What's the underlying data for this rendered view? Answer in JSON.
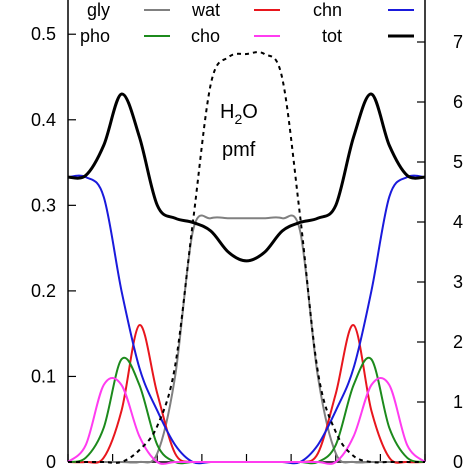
{
  "chart_data": {
    "type": "line",
    "title": "",
    "xlabel": "",
    "ylabel": "",
    "ylabel_right": "",
    "x_domain": [
      0,
      1
    ],
    "ylim": [
      0,
      0.54
    ],
    "y2lim": [
      0,
      7.7
    ],
    "yticks": [
      "0",
      "0.1",
      "0.2",
      "0.3",
      "0.4",
      "0.5"
    ],
    "y2ticks": [
      "0",
      "1",
      "2",
      "3",
      "4",
      "5",
      "6",
      "7"
    ],
    "grid": false,
    "legend_position": "top",
    "annotation": {
      "main": "H",
      "subscript": "2",
      "tail": "O",
      "line2": "pmf"
    },
    "x": [
      0.0,
      0.05,
      0.1,
      0.15,
      0.2,
      0.25,
      0.3,
      0.35,
      0.4,
      0.45,
      0.5,
      0.55,
      0.6,
      0.65,
      0.7,
      0.75,
      0.8,
      0.85,
      0.9,
      0.95,
      1.0
    ],
    "series": [
      {
        "name": "gly",
        "color": "#808080",
        "axis": "left",
        "values": [
          0.0,
          0.0,
          0.0,
          0.0,
          0.0,
          0.01,
          0.1,
          0.27,
          0.285,
          0.285,
          0.285,
          0.285,
          0.285,
          0.27,
          0.1,
          0.01,
          0.0,
          0.0,
          0.0,
          0.0,
          0.0
        ]
      },
      {
        "name": "wat",
        "color": "#e8161d",
        "axis": "left",
        "values": [
          0.0,
          0.0,
          0.005,
          0.06,
          0.16,
          0.08,
          0.01,
          0.0,
          0.0,
          0.0,
          0.0,
          0.0,
          0.0,
          0.0,
          0.01,
          0.08,
          0.16,
          0.06,
          0.005,
          0.0,
          0.0
        ]
      },
      {
        "name": "chn",
        "color": "#1a1adc",
        "axis": "left",
        "values": [
          0.333,
          0.333,
          0.31,
          0.2,
          0.11,
          0.06,
          0.02,
          0.0,
          0.0,
          0.0,
          0.0,
          0.0,
          0.0,
          0.0,
          0.02,
          0.06,
          0.11,
          0.2,
          0.31,
          0.333,
          0.333
        ]
      },
      {
        "name": "pho",
        "color": "#1c8a1c",
        "axis": "left",
        "values": [
          0.0,
          0.005,
          0.04,
          0.12,
          0.09,
          0.02,
          0.0,
          0.0,
          0.0,
          0.0,
          0.0,
          0.0,
          0.0,
          0.0,
          0.0,
          0.02,
          0.09,
          0.12,
          0.04,
          0.005,
          0.0
        ]
      },
      {
        "name": "cho",
        "color": "#ff3cf0",
        "axis": "left",
        "values": [
          0.0,
          0.02,
          0.09,
          0.09,
          0.03,
          0.0,
          0.0,
          0.0,
          0.0,
          0.0,
          0.0,
          0.0,
          0.0,
          0.0,
          0.0,
          0.0,
          0.03,
          0.09,
          0.09,
          0.02,
          0.0
        ]
      },
      {
        "name": "tot",
        "color": "#000000",
        "axis": "left",
        "values": [
          0.333,
          0.335,
          0.37,
          0.43,
          0.38,
          0.3,
          0.285,
          0.28,
          0.27,
          0.245,
          0.235,
          0.245,
          0.27,
          0.28,
          0.285,
          0.3,
          0.38,
          0.43,
          0.37,
          0.335,
          0.333
        ]
      },
      {
        "name": "",
        "color": "#000000",
        "axis": "right",
        "dashed": true,
        "values": [
          0.0,
          0.0,
          0.0,
          0.0,
          0.2,
          0.6,
          1.6,
          4.0,
          6.3,
          6.75,
          6.8,
          6.8,
          6.4,
          4.1,
          1.5,
          0.5,
          0.1,
          0.0,
          0.0,
          0.0,
          0.0
        ]
      }
    ]
  }
}
